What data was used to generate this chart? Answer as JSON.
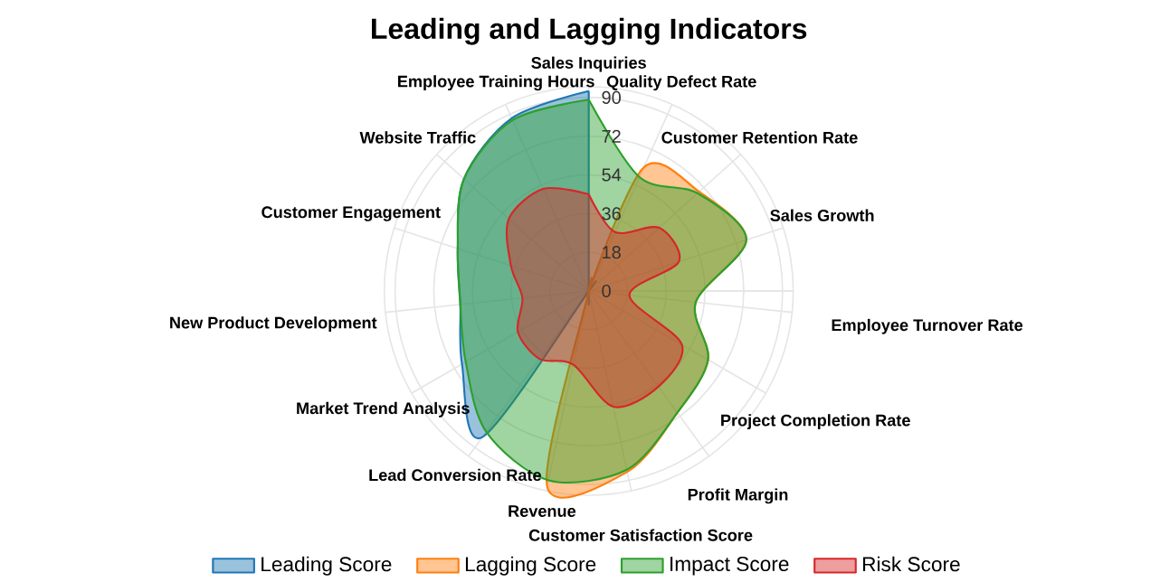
{
  "chart_data": {
    "type": "radar",
    "title": "Leading and Lagging Indicators",
    "categories": [
      "Sales Inquiries",
      "Quality Defect Rate",
      "Customer Retention Rate",
      "Sales Growth",
      "Employee Turnover Rate",
      "Project Completion Rate",
      "Profit Margin",
      "Customer Satisfaction Score",
      "Revenue",
      "Lead Conversion Rate",
      "Market Trend Analysis",
      "New Product Development",
      "Customer Engagement",
      "Website Traffic",
      "Employee Training Hours"
    ],
    "series": [
      {
        "name": "Leading Score",
        "color": "#1f77b4",
        "values": [
          93,
          0,
          0,
          0,
          0,
          0,
          0,
          0,
          0,
          84,
          68,
          60,
          64,
          78,
          88
        ]
      },
      {
        "name": "Lagging Score",
        "color": "#ff7f0e",
        "values": [
          0,
          63,
          69,
          77,
          50,
          64,
          70,
          86,
          93,
          0,
          0,
          0,
          0,
          0,
          0
        ]
      },
      {
        "name": "Impact Score",
        "color": "#2ca02c",
        "values": [
          89,
          58,
          68,
          77,
          50,
          64,
          70,
          85,
          90,
          81,
          66,
          60,
          64,
          78,
          87
        ]
      },
      {
        "name": "Risk Score",
        "color": "#d62728",
        "values": [
          45,
          30,
          44,
          44,
          19,
          50,
          55,
          55,
          35,
          39,
          38,
          31,
          38,
          50,
          52
        ]
      }
    ],
    "ylim": [
      0,
      95
    ],
    "yticks": [
      0,
      18,
      36,
      54,
      72,
      90
    ],
    "grid": true,
    "legend": "bottom"
  }
}
